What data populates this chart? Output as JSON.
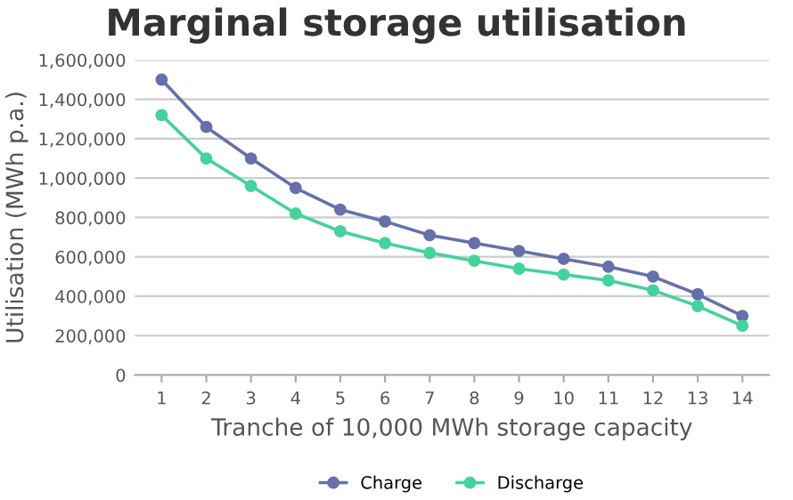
{
  "chart_data": {
    "type": "line",
    "title": "Marginal storage utilisation",
    "xlabel": "Tranche of 10,000 MWh storage capacity",
    "ylabel": "Utilisation (MWh p.a.)",
    "categories": [
      "1",
      "2",
      "3",
      "4",
      "5",
      "6",
      "7",
      "8",
      "9",
      "10",
      "11",
      "12",
      "13",
      "14"
    ],
    "series": [
      {
        "name": "Charge",
        "color": "#6670aa",
        "values": [
          1500000,
          1260000,
          1100000,
          950000,
          840000,
          780000,
          710000,
          670000,
          630000,
          590000,
          550000,
          500000,
          410000,
          300000
        ]
      },
      {
        "name": "Discharge",
        "color": "#44d39b",
        "values": [
          1320000,
          1100000,
          960000,
          820000,
          730000,
          670000,
          620000,
          580000,
          540000,
          510000,
          480000,
          430000,
          350000,
          250000
        ]
      }
    ],
    "ylim": [
      0,
      1600000
    ],
    "yticks": [
      {
        "value": 0,
        "label": "0"
      },
      {
        "value": 200000,
        "label": "200,000"
      },
      {
        "value": 400000,
        "label": "400,000"
      },
      {
        "value": 600000,
        "label": "600,000"
      },
      {
        "value": 800000,
        "label": "800,000"
      },
      {
        "value": 1000000,
        "label": "1,000,000"
      },
      {
        "value": 1200000,
        "label": "1,200,000"
      },
      {
        "value": 1400000,
        "label": "1,400,000"
      },
      {
        "value": 1600000,
        "label": "1,600,000"
      }
    ],
    "grid": "y",
    "legend": "bottom",
    "marker": "circle",
    "line_style": "solid"
  }
}
